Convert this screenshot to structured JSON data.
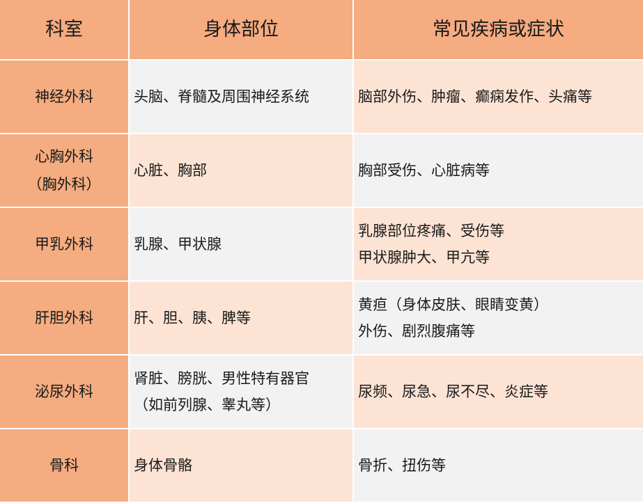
{
  "colors": {
    "header": "#F4AC80",
    "peach": "#FDE3D4",
    "gray": "#F2F2F2"
  },
  "headers": [
    "科室",
    "身体部位",
    "常见疾病或症状"
  ],
  "rows": [
    {
      "dept": [
        "神经外科"
      ],
      "parts": [
        "头脑、脊髓及周围神经系统"
      ],
      "symptoms": [
        "脑部外伤、肿瘤、癫痫发作、头痛等"
      ]
    },
    {
      "dept": [
        "心胸外科",
        "（胸外科）"
      ],
      "parts": [
        "心脏、胸部"
      ],
      "symptoms": [
        "胸部受伤、心脏病等"
      ]
    },
    {
      "dept": [
        "甲乳外科"
      ],
      "parts": [
        "乳腺、甲状腺"
      ],
      "symptoms": [
        "乳腺部位疼痛、受伤等",
        "甲状腺肿大、甲亢等"
      ]
    },
    {
      "dept": [
        "肝胆外科"
      ],
      "parts": [
        "肝、胆、胰、脾等"
      ],
      "symptoms": [
        "黄疸（身体皮肤、眼睛变黄）",
        "外伤、剧烈腹痛等"
      ]
    },
    {
      "dept": [
        "泌尿外科"
      ],
      "parts": [
        "肾脏、膀胱、男性特有器官",
        "（如前列腺、睾丸等）"
      ],
      "symptoms": [
        "尿频、尿急、尿不尽、炎症等"
      ]
    },
    {
      "dept": [
        "骨科"
      ],
      "parts": [
        "身体骨骼"
      ],
      "symptoms": [
        "骨折、扭伤等"
      ]
    }
  ]
}
